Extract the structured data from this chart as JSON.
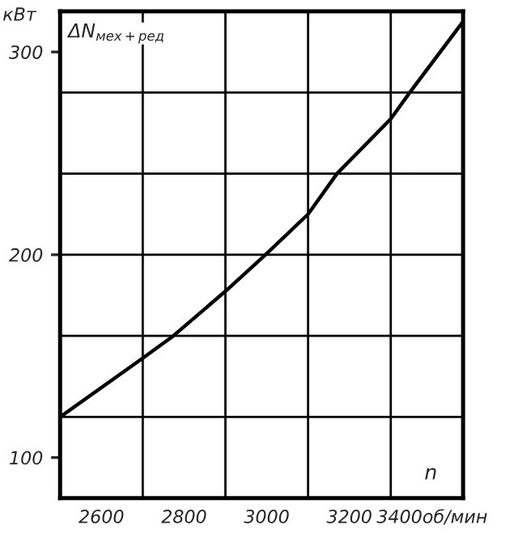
{
  "chart_data": {
    "type": "line",
    "ylabel": "кВт",
    "xlabel": "n",
    "annotations": [
      "ΔN$_{мех+ред}$"
    ],
    "x": [
      2500,
      2700,
      2774,
      2900,
      2997,
      3100,
      3170,
      3300,
      3346,
      3475
    ],
    "series": [
      {
        "color": "#000000",
        "values": [
          120,
          149,
          160,
          182,
          200,
          220,
          240,
          267,
          280,
          315
        ]
      }
    ],
    "xlim": [
      2500,
      3475
    ],
    "ylim": [
      80,
      320
    ],
    "xticks": [
      2600,
      2800,
      3000,
      3200,
      {
        "value": 3400,
        "label": "3400об/мин"
      }
    ],
    "yticks": [
      100,
      200,
      300
    ],
    "ref_lines": [
      {
        "axis": "x",
        "value": 2700,
        "label": null
      },
      {
        "axis": "x",
        "value": 2900,
        "label": null
      },
      {
        "axis": "x",
        "value": 3100,
        "label": null
      },
      {
        "axis": "x",
        "value": 3300,
        "label": null
      },
      {
        "axis": "y",
        "value": 120,
        "label": null
      },
      {
        "axis": "y",
        "value": 160,
        "label": null
      },
      {
        "axis": "y",
        "value": 200,
        "label": null
      },
      {
        "axis": "y",
        "value": 240,
        "label": null
      },
      {
        "axis": "y",
        "value": 280,
        "label": null
      }
    ],
    "grid": false,
    "legend": false,
    "marker": "none",
    "line_style": "solid"
  }
}
